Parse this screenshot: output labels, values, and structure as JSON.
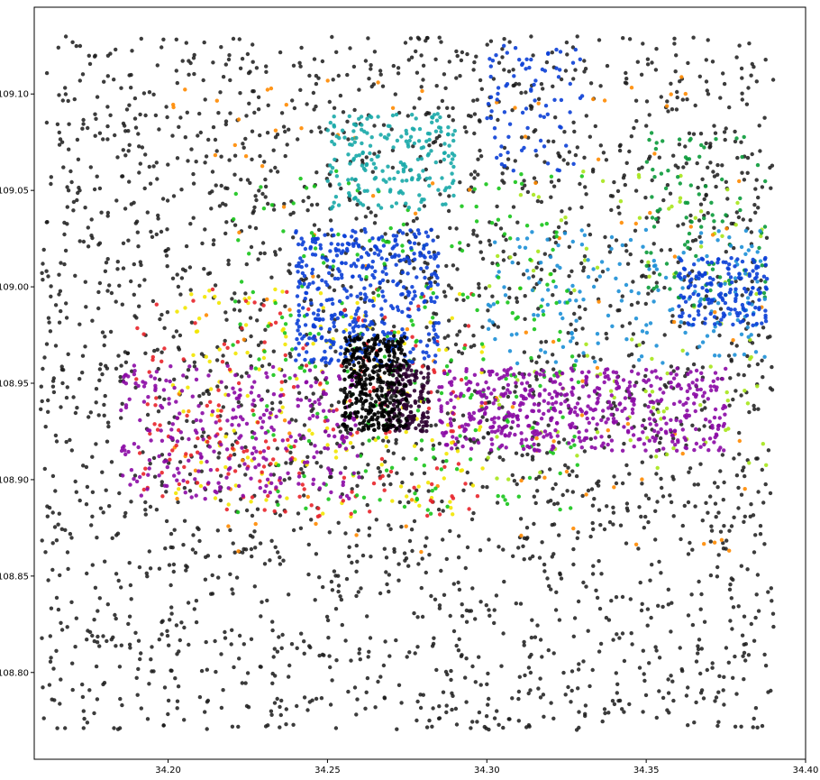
{
  "chart_data": {
    "type": "scatter",
    "title": "",
    "xlabel": "",
    "ylabel": "",
    "xlim": [
      34.158,
      34.4
    ],
    "ylim": [
      108.755,
      109.145
    ],
    "grid": false,
    "legend": "none",
    "x_ticks": [
      34.2,
      34.25,
      34.3,
      34.35,
      34.4
    ],
    "y_ticks": [
      108.8,
      108.85,
      108.9,
      108.95,
      109.0,
      109.05,
      109.1
    ],
    "x_tick_labels": [
      "34.20",
      "34.25",
      "34.30",
      "34.35",
      "34.40"
    ],
    "y_tick_labels": [
      "108.80",
      "108.85",
      "108.90",
      "108.95",
      "109.00",
      "109.05",
      "109.10"
    ],
    "point_colors": [
      "#1a1a1a",
      "#8b0aa5",
      "#0b3fd6",
      "#18a8a8",
      "#17c41a",
      "#e8232a",
      "#f2e600",
      "#ff8a00",
      "#1c8fd6",
      "#2b0030",
      "#0a9a3a",
      "#a6e61a"
    ],
    "clusters": [
      {
        "color": "#000000",
        "x": [
          34.255,
          34.275
        ],
        "y": [
          108.925,
          108.975
        ],
        "count": 380
      },
      {
        "color": "#2b0030",
        "x": [
          34.268,
          34.282
        ],
        "y": [
          108.925,
          108.96
        ],
        "count": 160
      },
      {
        "color": "#8b0aa5",
        "x": [
          34.285,
          34.375
        ],
        "y": [
          108.915,
          108.958
        ],
        "count": 520
      },
      {
        "color": "#8b0aa5",
        "x": [
          34.185,
          34.26
        ],
        "y": [
          108.89,
          108.96
        ],
        "count": 300
      },
      {
        "color": "#0b3fd6",
        "x": [
          34.24,
          34.285
        ],
        "y": [
          108.96,
          109.03
        ],
        "count": 420
      },
      {
        "color": "#0b3fd6",
        "x": [
          34.36,
          34.388
        ],
        "y": [
          108.98,
          109.015
        ],
        "count": 160
      },
      {
        "color": "#0b3fd6",
        "x": [
          34.3,
          34.33
        ],
        "y": [
          109.06,
          109.125
        ],
        "count": 80
      },
      {
        "color": "#18a8a8",
        "x": [
          34.25,
          34.29
        ],
        "y": [
          109.04,
          109.09
        ],
        "count": 200
      },
      {
        "color": "#17c41a",
        "x": [
          34.22,
          34.33
        ],
        "y": [
          108.88,
          109.06
        ],
        "count": 260
      },
      {
        "color": "#e8232a",
        "x": [
          34.19,
          34.3
        ],
        "y": [
          108.88,
          109.0
        ],
        "count": 200
      },
      {
        "color": "#f2e600",
        "x": [
          34.2,
          34.3
        ],
        "y": [
          108.88,
          109.0
        ],
        "count": 160
      },
      {
        "color": "#ff8a00",
        "x": [
          34.2,
          34.388
        ],
        "y": [
          108.86,
          109.11
        ],
        "count": 120
      },
      {
        "color": "#1c8fd6",
        "x": [
          34.3,
          34.388
        ],
        "y": [
          108.96,
          109.03
        ],
        "count": 180
      },
      {
        "color": "#0a9a3a",
        "x": [
          34.35,
          34.388
        ],
        "y": [
          108.99,
          109.08
        ],
        "count": 90
      },
      {
        "color": "#a6e61a",
        "x": [
          34.3,
          34.388
        ],
        "y": [
          108.9,
          109.06
        ],
        "count": 110
      },
      {
        "color": "#1a1a1a",
        "x": [
          34.16,
          34.39
        ],
        "y": [
          108.77,
          109.13
        ],
        "count": 2600
      }
    ]
  }
}
